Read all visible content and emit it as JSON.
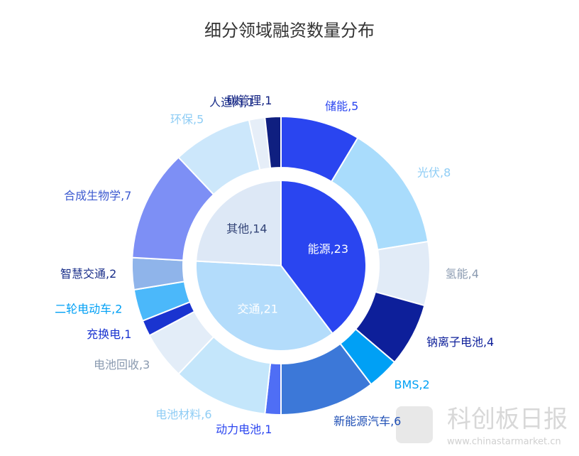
{
  "chart_data": {
    "type": "sunburst",
    "title": "细分领域融资数量分布",
    "inner": {
      "labels": [
        "能源,23",
        "交通,21",
        "其他,14"
      ],
      "values": [
        23,
        21,
        14
      ],
      "colors": [
        "#2a45f0",
        "#b3dcfb",
        "#dde8f6"
      ],
      "label_colors": [
        "#ffffff",
        "#ffffff",
        "#334477"
      ]
    },
    "outer": {
      "labels": [
        "储能,5",
        "光伏,8",
        "氢能,4",
        "钠离子电池,4",
        "BMS,2",
        "新能源汽车,6",
        "动力电池,1",
        "电池材料,6",
        "电池回收,3",
        "充换电,1",
        "二轮电动车,2",
        "智慧交通,2",
        "合成生物学,7",
        "环保,5",
        "人造肉,1",
        "碳管理,1"
      ],
      "values": [
        5,
        8,
        4,
        4,
        2,
        6,
        1,
        6,
        3,
        1,
        2,
        2,
        7,
        5,
        1,
        1
      ],
      "colors": [
        "#2a45f0",
        "#a9dcfc",
        "#e1ebf7",
        "#0d1f9a",
        "#00a0f5",
        "#3c78d8",
        "#4f6ef5",
        "#c4e6fb",
        "#e3edf8",
        "#1a34d0",
        "#4bb8fa",
        "#8fb4ea",
        "#7d8ff5",
        "#cce7fb",
        "#e6eef8",
        "#0f1f80"
      ],
      "label_colors": [
        "#2a45f0",
        "#8fcdf5",
        "#8a9ab0",
        "#0d1f9a",
        "#00a0f5",
        "#1f4fb5",
        "#2a45f0",
        "#8fcdf5",
        "#8a9ab0",
        "#1a34d0",
        "#00a0f5",
        "#1a2f8a",
        "#3c5ad0",
        "#8fcdf5",
        "#1a2f8a",
        "#0f1f80"
      ]
    },
    "watermark": {
      "name": "科创板日报",
      "url": "www.chinastarmarket.cn"
    }
  }
}
